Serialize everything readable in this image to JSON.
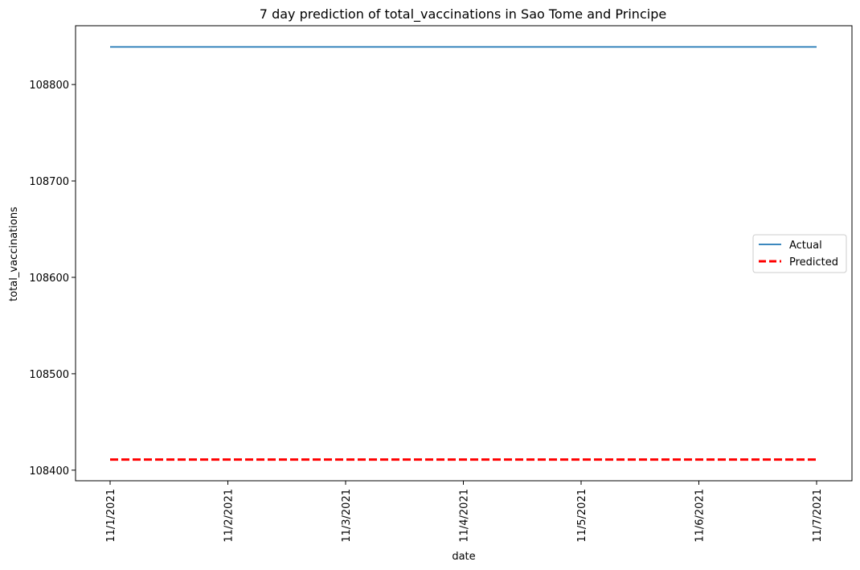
{
  "chart_data": {
    "type": "line",
    "title": "7 day prediction of total_vaccinations in Sao Tome and Principe",
    "xlabel": "date",
    "ylabel": "total_vaccinations",
    "categories": [
      "11/1/2021",
      "11/2/2021",
      "11/3/2021",
      "11/4/2021",
      "11/5/2021",
      "11/6/2021",
      "11/7/2021"
    ],
    "y_ticks": [
      108400,
      108500,
      108600,
      108700,
      108800
    ],
    "ylim": [
      108389,
      108861
    ],
    "grid": false,
    "legend_position": "center-right",
    "series": [
      {
        "name": "Actual",
        "color": "#1f77b4",
        "style": "solid",
        "values": [
          108839,
          108839,
          108839,
          108839,
          108839,
          108839,
          108839
        ]
      },
      {
        "name": "Predicted",
        "color": "#ff0000",
        "style": "dashed",
        "values": [
          108411,
          108411,
          108411,
          108411,
          108411,
          108411,
          108411
        ]
      }
    ]
  }
}
